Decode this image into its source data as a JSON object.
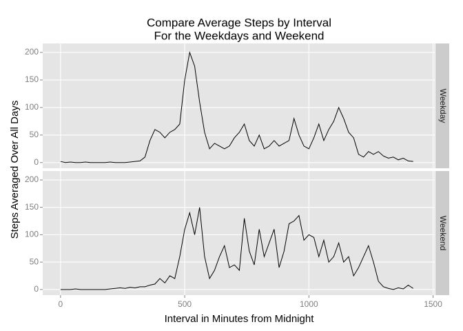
{
  "chart_data": {
    "type": "line",
    "title": [
      "Compare Average Steps by Interval",
      "For the Weekdays and Weekend"
    ],
    "xlabel": "Interval in Minutes from Midnight",
    "ylabel": "Steps Averaged Over All Days",
    "xlim": [
      -71.75,
      1506.75
    ],
    "xticks": [
      0,
      500,
      1000,
      1500
    ],
    "ylim": [
      -10.3,
      216.3
    ],
    "yticks": [
      0,
      50,
      100,
      150,
      200
    ],
    "grid": true,
    "x": [
      0,
      20,
      40,
      60,
      80,
      100,
      120,
      140,
      160,
      180,
      200,
      220,
      240,
      260,
      280,
      300,
      320,
      340,
      360,
      380,
      400,
      420,
      440,
      460,
      480,
      500,
      520,
      540,
      560,
      580,
      600,
      620,
      640,
      660,
      680,
      700,
      720,
      740,
      760,
      780,
      800,
      820,
      840,
      860,
      880,
      900,
      920,
      940,
      960,
      980,
      1000,
      1020,
      1040,
      1060,
      1080,
      1100,
      1120,
      1140,
      1160,
      1180,
      1200,
      1220,
      1240,
      1260,
      1280,
      1300,
      1320,
      1340,
      1360,
      1380,
      1400,
      1420
    ],
    "series": [
      {
        "name": "Weekday",
        "color": "#000000",
        "values": [
          2,
          0,
          1,
          0,
          0,
          1,
          0,
          0,
          0,
          0,
          1,
          0,
          0,
          0,
          1,
          2,
          3,
          10,
          40,
          60,
          55,
          45,
          55,
          60,
          70,
          150,
          200,
          175,
          110,
          55,
          25,
          35,
          30,
          25,
          30,
          45,
          55,
          70,
          40,
          30,
          50,
          25,
          30,
          40,
          30,
          35,
          40,
          80,
          50,
          30,
          25,
          45,
          70,
          40,
          60,
          75,
          100,
          80,
          55,
          45,
          15,
          10,
          20,
          15,
          20,
          12,
          8,
          10,
          5,
          8,
          3,
          2
        ]
      },
      {
        "name": "Weekend",
        "color": "#000000",
        "values": [
          0,
          0,
          0,
          1,
          0,
          0,
          0,
          0,
          0,
          0,
          1,
          2,
          3,
          2,
          4,
          3,
          5,
          5,
          8,
          10,
          20,
          12,
          25,
          20,
          60,
          110,
          140,
          100,
          150,
          60,
          20,
          35,
          60,
          80,
          40,
          45,
          35,
          130,
          70,
          45,
          110,
          60,
          85,
          110,
          40,
          70,
          120,
          125,
          135,
          90,
          100,
          95,
          60,
          90,
          50,
          60,
          85,
          50,
          60,
          25,
          40,
          60,
          80,
          50,
          15,
          5,
          2,
          0,
          3,
          1,
          8,
          2
        ]
      }
    ]
  }
}
